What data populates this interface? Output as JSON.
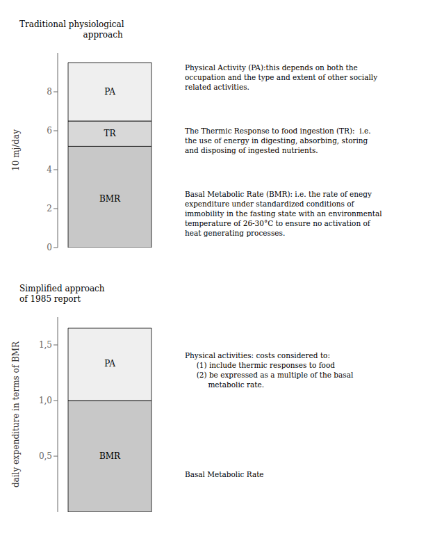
{
  "chart_data": [
    {
      "type": "bar",
      "stacked": true,
      "title": [
        "Traditional physiological",
        "                        approach"
      ],
      "ylabel": "10 mj/day",
      "categories": [
        null
      ],
      "series": [
        {
          "name": "BMR",
          "color": "#c8c8c8",
          "values": [
            5.2
          ]
        },
        {
          "name": "TR",
          "color": "#d8d8d8",
          "values": [
            1.3
          ]
        },
        {
          "name": "PA",
          "color": "#efefef",
          "values": [
            3.0
          ]
        }
      ],
      "ylim": [
        0,
        10
      ],
      "yticks": [
        0,
        2,
        4,
        6,
        8
      ],
      "tick_labels": "y",
      "annotations": [
        {
          "text": "PA",
          "y": 8.0
        },
        {
          "text": "TR",
          "y": 5.85
        },
        {
          "text": "BMR",
          "y": 2.5
        },
        {
          "lines": [
            "Physical Activity (PA):this depends on both the",
            "occupation and the type and extent of other socially",
            "related activities."
          ]
        },
        {
          "lines": [
            "The Thermic Response to food ingestion (TR):  i.e.",
            "the use of energy in digesting, absorbing, storing",
            "and disposing of ingested nutrients."
          ]
        },
        {
          "lines": [
            "Basal Metabolic Rate (BMR): i.e. the rate of enegy",
            "expenditure under standardized conditions of",
            "immobility in the fasting state with an environmental",
            "temperature of 26-30°C to ensure no activation of",
            "heat generating processes."
          ]
        }
      ]
    },
    {
      "type": "bar",
      "stacked": true,
      "title": [
        "Simplified approach",
        "of 1985 report"
      ],
      "ylabel": "daily expenditure in terms of BMR",
      "categories": [
        null
      ],
      "series": [
        {
          "name": "BMR",
          "color": "#c8c8c8",
          "values": [
            1.0
          ]
        },
        {
          "name": "PA",
          "color": "#efefef",
          "values": [
            0.65
          ]
        }
      ],
      "ylim": [
        0,
        1.75
      ],
      "yticks": [
        {
          "value": 0.5,
          "label": "0,5"
        },
        {
          "value": 1.0,
          "label": "1,0"
        },
        {
          "value": 1.5,
          "label": "1,5"
        }
      ],
      "tick_labels": "y",
      "annotations": [
        {
          "text": "PA",
          "y": 1.33
        },
        {
          "text": "BMR",
          "y": 0.5
        },
        {
          "lines": [
            "Physical activities: costs considered to:",
            "     (1) include thermic responses to food",
            "     (2) be expressed as a multiple of the basal",
            "          metabolic rate."
          ]
        },
        {
          "lines": [
            "Basal Metabolic Rate"
          ]
        }
      ]
    }
  ]
}
